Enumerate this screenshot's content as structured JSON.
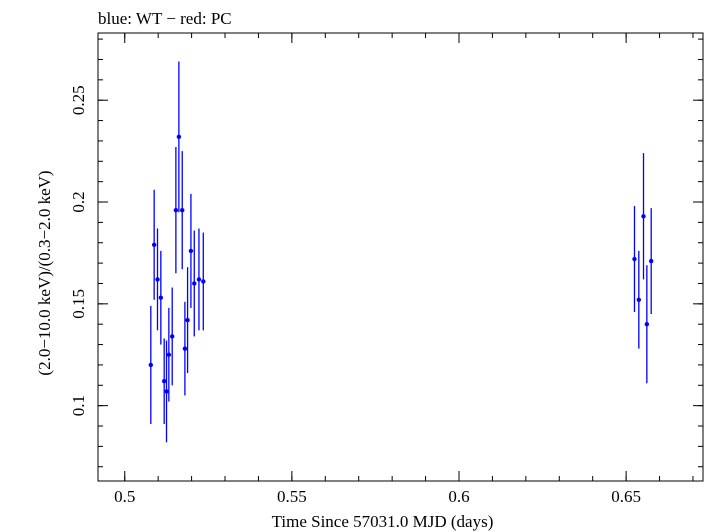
{
  "chart_data": {
    "type": "scatter",
    "title": "blue: WT − red: PC",
    "xlabel": "Time Since 57031.0 MJD (days)",
    "ylabel": "(2.0−10.0 keV)/(0.3−2.0 keV)",
    "xlim": [
      0.492,
      0.673
    ],
    "ylim": [
      0.063,
      0.283
    ],
    "x_ticks": [
      {
        "value": 0.5,
        "label": "0.5"
      },
      {
        "value": 0.55,
        "label": "0.55"
      },
      {
        "value": 0.6,
        "label": "0.6"
      },
      {
        "value": 0.65,
        "label": "0.65"
      }
    ],
    "y_ticks": [
      {
        "value": 0.1,
        "label": "0.1"
      },
      {
        "value": 0.15,
        "label": "0.15"
      },
      {
        "value": 0.2,
        "label": "0.2"
      },
      {
        "value": 0.25,
        "label": "0.25"
      }
    ],
    "x_minor_step": 0.01,
    "y_minor_step": 0.01,
    "series": [
      {
        "name": "WT",
        "color": "#0000ff",
        "points": [
          {
            "x": 0.5078,
            "y": 0.12,
            "yerr": 0.029,
            "xerr": 0.0005
          },
          {
            "x": 0.5088,
            "y": 0.179,
            "yerr": 0.027,
            "xerr": 0.0005
          },
          {
            "x": 0.5098,
            "y": 0.162,
            "yerr": 0.025,
            "xerr": 0.0005
          },
          {
            "x": 0.5108,
            "y": 0.153,
            "yerr": 0.023,
            "xerr": 0.0005
          },
          {
            "x": 0.5118,
            "y": 0.112,
            "yerr": 0.021,
            "xerr": 0.0005
          },
          {
            "x": 0.5125,
            "y": 0.107,
            "yerr": 0.025,
            "xerr": 0.0005
          },
          {
            "x": 0.5132,
            "y": 0.125,
            "yerr": 0.023,
            "xerr": 0.0005
          },
          {
            "x": 0.5142,
            "y": 0.134,
            "yerr": 0.024,
            "xerr": 0.0005
          },
          {
            "x": 0.5153,
            "y": 0.196,
            "yerr": 0.031,
            "xerr": 0.0005
          },
          {
            "x": 0.5162,
            "y": 0.232,
            "yerr": 0.037,
            "xerr": 0.0005
          },
          {
            "x": 0.5172,
            "y": 0.196,
            "yerr": 0.029,
            "xerr": 0.0005
          },
          {
            "x": 0.518,
            "y": 0.128,
            "yerr": 0.023,
            "xerr": 0.0005
          },
          {
            "x": 0.5188,
            "y": 0.142,
            "yerr": 0.026,
            "xerr": 0.0005
          },
          {
            "x": 0.5198,
            "y": 0.176,
            "yerr": 0.028,
            "xerr": 0.0005
          },
          {
            "x": 0.5208,
            "y": 0.16,
            "yerr": 0.026,
            "xerr": 0.0005
          },
          {
            "x": 0.5222,
            "y": 0.162,
            "yerr": 0.025,
            "xerr": 0.0005
          },
          {
            "x": 0.5235,
            "y": 0.161,
            "yerr": 0.024,
            "xerr": 0.0005
          },
          {
            "x": 0.6525,
            "y": 0.172,
            "yerr": 0.026,
            "xerr": 0.0005
          },
          {
            "x": 0.6538,
            "y": 0.152,
            "yerr": 0.024,
            "xerr": 0.0005
          },
          {
            "x": 0.6552,
            "y": 0.193,
            "yerr": 0.031,
            "xerr": 0.0005
          },
          {
            "x": 0.6562,
            "y": 0.14,
            "yerr": 0.029,
            "xerr": 0.0005
          },
          {
            "x": 0.6575,
            "y": 0.171,
            "yerr": 0.026,
            "xerr": 0.0005
          }
        ]
      }
    ]
  }
}
